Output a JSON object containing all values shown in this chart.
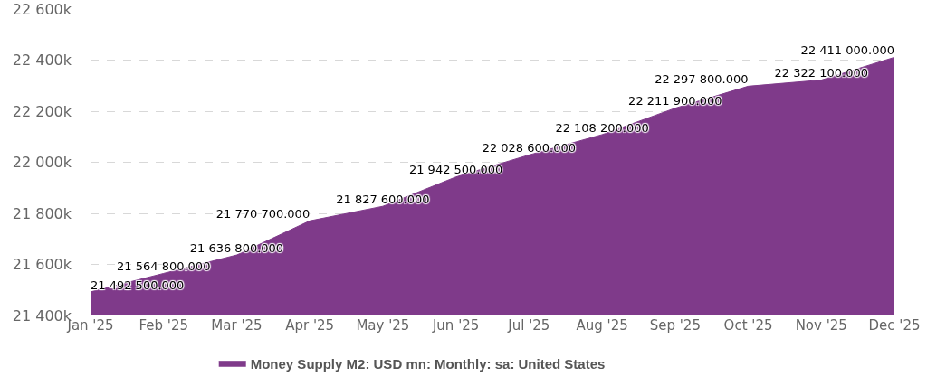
{
  "chart_data": {
    "type": "area",
    "categories": [
      "Jan '25",
      "Feb '25",
      "Mar '25",
      "Apr '25",
      "May '25",
      "Jun '25",
      "Jul '25",
      "Aug '25",
      "Sep '25",
      "Oct '25",
      "Nov '25",
      "Dec '25"
    ],
    "series": [
      {
        "name": "Money Supply M2: USD mn: Monthly: sa: United States",
        "color": "#7f3a8a",
        "values": [
          21492500,
          21564800,
          21636800,
          21770700,
          21827600,
          21942500,
          22028600,
          22108200,
          22211900,
          22297800,
          22322100,
          22411000
        ],
        "value_labels": [
          "21 492 500.000",
          "21 564 800.000",
          "21 636 800.000",
          "21 770 700.000",
          "21 827 600.000",
          "21 942 500.000",
          "22 028 600.000",
          "22 108 200.000",
          "22 211 900.000",
          "22 297 800.000",
          "22 322 100.000",
          "22 411 000.000"
        ]
      }
    ],
    "ylim": [
      21400000,
      22600000
    ],
    "yticks": [
      {
        "value": 21400000,
        "label": "21 400k"
      },
      {
        "value": 21600000,
        "label": "21 600k"
      },
      {
        "value": 21800000,
        "label": "21 800k"
      },
      {
        "value": 22000000,
        "label": "22 000k"
      },
      {
        "value": 22200000,
        "label": "22 200k"
      },
      {
        "value": 22400000,
        "label": "22 400k"
      },
      {
        "value": 22600000,
        "label": "22 600k"
      }
    ],
    "grid": "y",
    "legend": "bottom"
  }
}
